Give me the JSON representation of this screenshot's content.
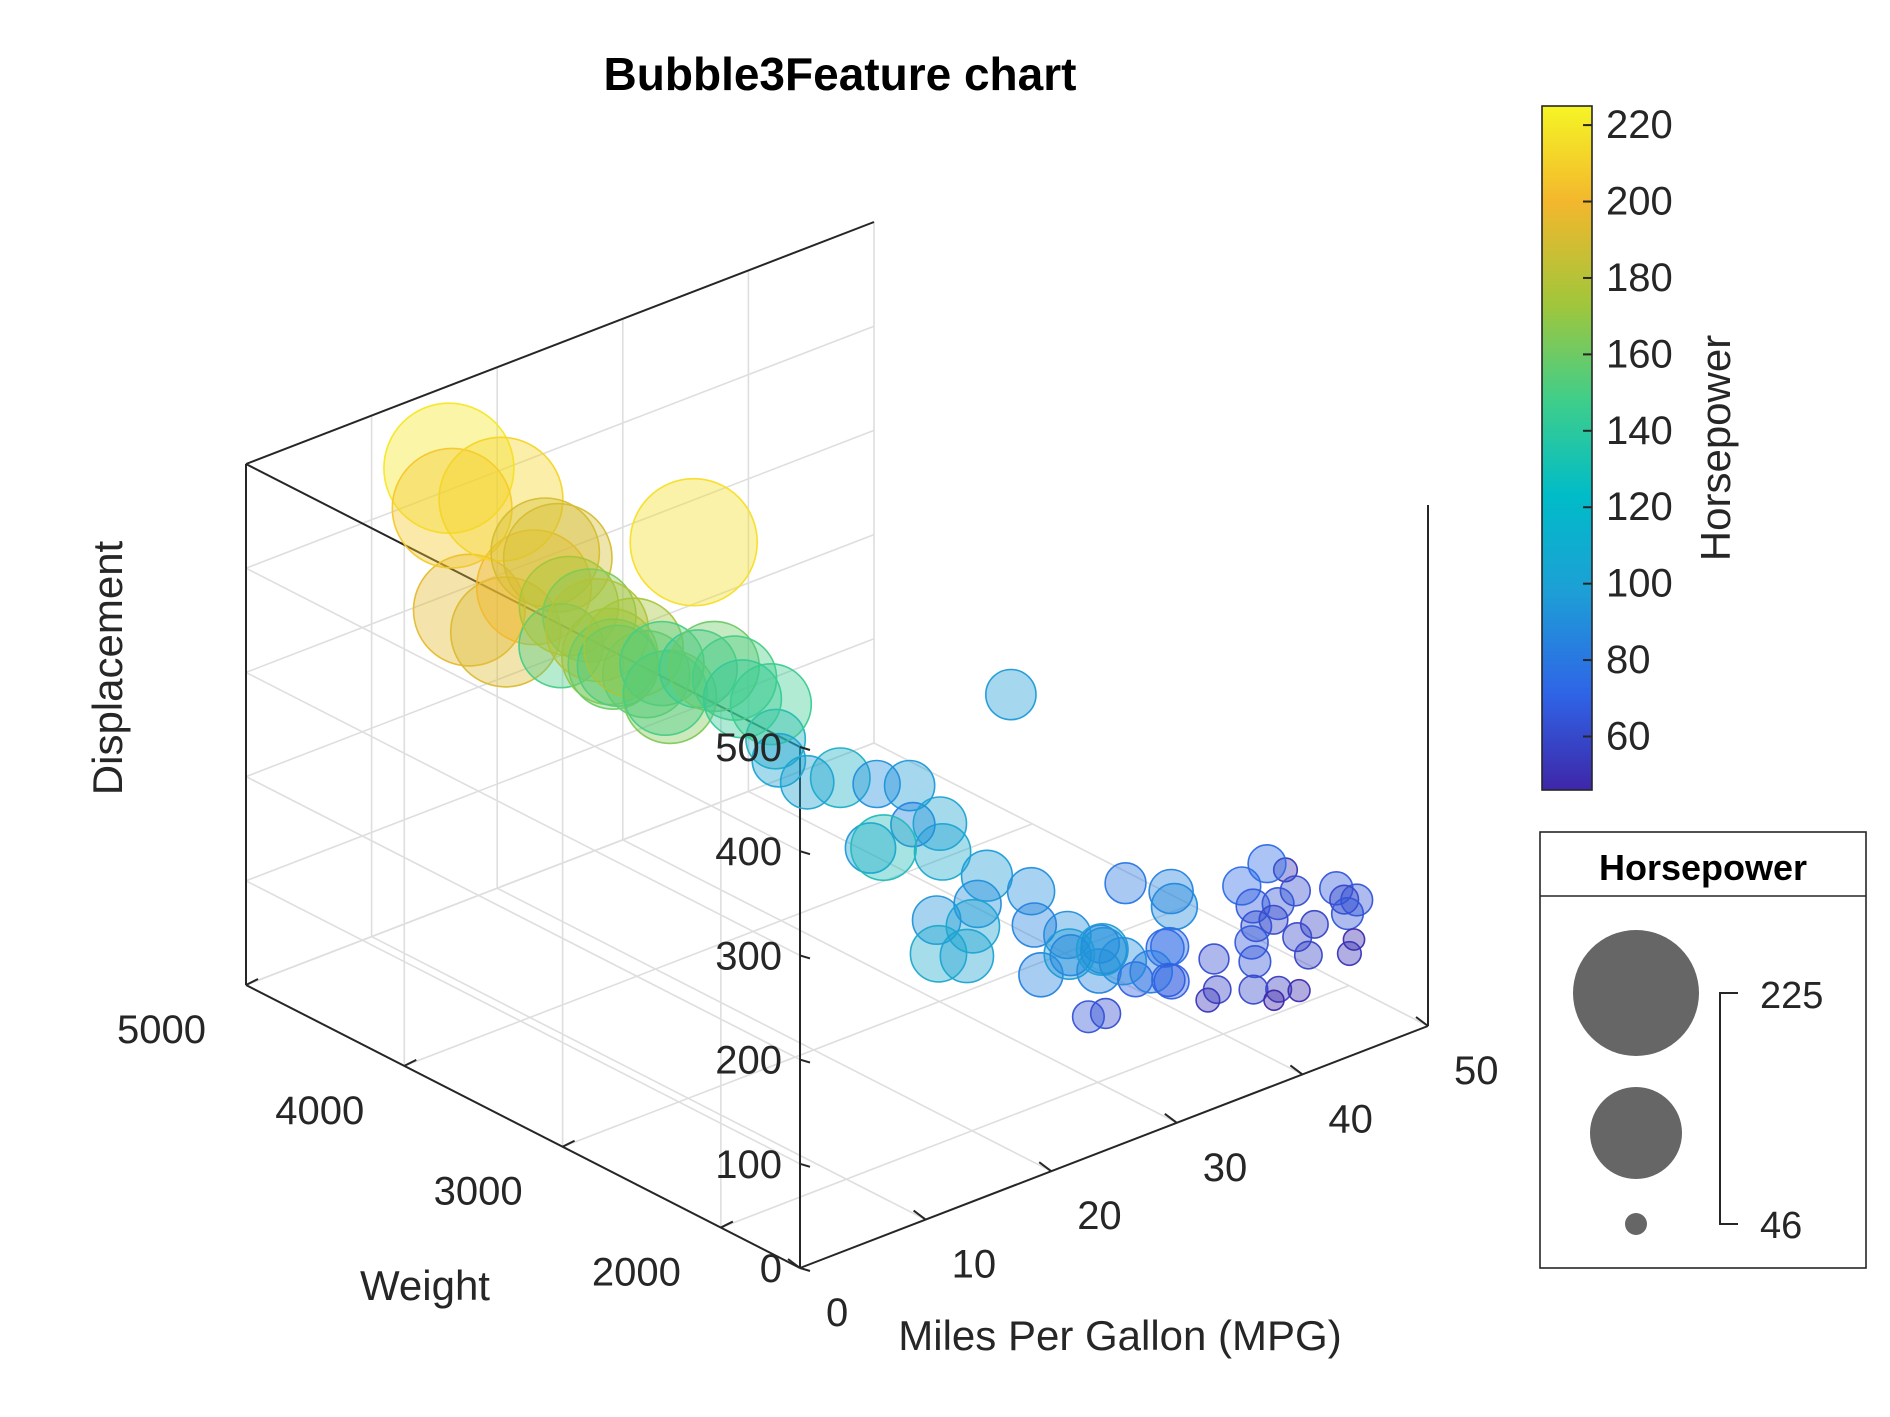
{
  "chart_data": {
    "type": "scatter",
    "subtype": "bubble3d",
    "title": "Bubble3Feature chart",
    "xlabel": "Miles Per Gallon (MPG)",
    "ylabel": "Weight",
    "zlabel": "Displacement",
    "xlim": [
      0,
      50
    ],
    "ylim": [
      1500,
      5000
    ],
    "zlim": [
      0,
      500
    ],
    "xticks": [
      "0",
      "10",
      "20",
      "30",
      "40",
      "50"
    ],
    "yticks": [
      "2000",
      "3000",
      "4000",
      "5000"
    ],
    "zticks": [
      "0",
      "100",
      "200",
      "300",
      "400",
      "500"
    ],
    "grid": true,
    "colormap": [
      "#3e26a8",
      "#2f64e7",
      "#1d9fd6",
      "#1fbfb6",
      "#3fce8a",
      "#a1c63b",
      "#f3b72d",
      "#f5e725"
    ],
    "colorbar": {
      "label": "Horsepower",
      "limits": [
        46,
        225
      ],
      "ticks": [
        "60",
        "80",
        "100",
        "120",
        "140",
        "160",
        "180",
        "200",
        "220"
      ]
    },
    "size_legend": {
      "title": "Horsepower",
      "max_label": "225",
      "min_label": "46"
    },
    "series": [
      {
        "name": "",
        "columns": [
          "mpg",
          "weight",
          "displacement",
          "horsepower"
        ],
        "points": [
          [
            13,
            4750,
            455,
            225
          ],
          [
            14,
            4500,
            440,
            215
          ],
          [
            12,
            4650,
            429,
            208
          ],
          [
            15,
            4300,
            400,
            190
          ],
          [
            16,
            4450,
            350,
            200
          ],
          [
            14,
            4700,
            318,
            195
          ],
          [
            15,
            4550,
            304,
            192
          ],
          [
            18,
            3600,
            450,
            220
          ],
          [
            16,
            4050,
            340,
            180
          ],
          [
            17,
            3900,
            330,
            175
          ],
          [
            16,
            4100,
            350,
            165
          ],
          [
            15,
            4200,
            318,
            150
          ],
          [
            17,
            4000,
            305,
            145
          ],
          [
            18,
            3800,
            318,
            150
          ],
          [
            17,
            3700,
            302,
            150
          ],
          [
            19,
            3650,
            320,
            140
          ],
          [
            16,
            3950,
            315,
            160
          ],
          [
            18,
            3750,
            290,
            165
          ],
          [
            18,
            3900,
            300,
            155
          ],
          [
            17,
            4050,
            310,
            170
          ],
          [
            20,
            3450,
            302,
            140
          ],
          [
            20,
            3500,
            318,
            150
          ],
          [
            19,
            3550,
            330,
            160
          ],
          [
            21,
            3350,
            300,
            145
          ],
          [
            16,
            4300,
            390,
            190
          ],
          [
            15,
            4150,
            360,
            175
          ],
          [
            22,
            3400,
            258,
            110
          ],
          [
            21,
            3300,
            250,
            100
          ],
          [
            22,
            3200,
            232,
            100
          ],
          [
            24,
            3150,
            231,
            110
          ],
          [
            25,
            3000,
            232,
            90
          ],
          [
            27,
            2950,
            225,
            95
          ],
          [
            25,
            2600,
            225,
            100
          ],
          [
            22,
            2800,
            200,
            95
          ],
          [
            26,
            2850,
            200,
            85
          ],
          [
            18,
            2400,
            250,
            120
          ],
          [
            28,
            2600,
            134,
            90
          ],
          [
            30,
            2700,
            144,
            96
          ],
          [
            27,
            2550,
            121,
            100
          ],
          [
            29,
            2900,
            156,
            105
          ],
          [
            26,
            2700,
            120,
            92
          ],
          [
            23,
            2450,
            121,
            105
          ],
          [
            24,
            2350,
            122,
            100
          ],
          [
            28,
            2200,
            97,
            85
          ],
          [
            30,
            2400,
            120,
            85
          ],
          [
            32,
            2350,
            105,
            90
          ],
          [
            31,
            2250,
            98,
            80
          ],
          [
            33,
            2200,
            97,
            88
          ],
          [
            31,
            2500,
            140,
            90
          ],
          [
            34,
            2300,
            91,
            75
          ],
          [
            32,
            2150,
            86,
            85
          ],
          [
            36,
            2050,
            97,
            75
          ],
          [
            33,
            2000,
            85,
            70
          ],
          [
            35,
            1950,
            79,
            67
          ],
          [
            37,
            2100,
            90,
            75
          ],
          [
            38,
            1900,
            89,
            62
          ],
          [
            32,
            2000,
            107,
            90
          ],
          [
            29,
            2100,
            120,
            95
          ],
          [
            31,
            2050,
            119,
            97
          ],
          [
            34,
            1850,
            90,
            70
          ],
          [
            40,
            1800,
            85,
            65
          ],
          [
            41,
            1900,
            91,
            67
          ],
          [
            42,
            1950,
            98,
            63
          ],
          [
            44,
            1850,
            86,
            60
          ],
          [
            38,
            2150,
            120,
            88
          ],
          [
            36,
            2300,
            140,
            80
          ],
          [
            39,
            2250,
            122,
            85
          ],
          [
            43,
            2050,
            105,
            68
          ],
          [
            44,
            2000,
            91,
            60
          ],
          [
            46,
            1900,
            85,
            58
          ],
          [
            47,
            2100,
            97,
            62
          ],
          [
            46,
            2200,
            120,
            75
          ],
          [
            44,
            2200,
            108,
            75
          ],
          [
            45,
            2050,
            98,
            65
          ],
          [
            37,
            1800,
            72,
            58
          ],
          [
            35,
            1700,
            79,
            52
          ],
          [
            30,
            1950,
            70,
            62
          ],
          [
            40,
            1650,
            70,
            55
          ],
          [
            43,
            1700,
            85,
            58
          ],
          [
            41,
            1600,
            68,
            49
          ],
          [
            48,
            1850,
            90,
            65
          ],
          [
            49,
            2000,
            98,
            67
          ],
          [
            49,
            1950,
            91,
            60
          ],
          [
            46,
            1650,
            90,
            48
          ],
          [
            39,
            1600,
            68,
            46
          ],
          [
            28,
            1900,
            80,
            65
          ],
          [
            45,
            1600,
            85,
            52
          ],
          [
            38,
            1650,
            79,
            60
          ],
          [
            50,
            1950,
            86,
            65
          ],
          [
            42,
            3500,
            200,
            95
          ],
          [
            50,
            2400,
            80,
            52
          ],
          [
            33,
            1900,
            100,
            82
          ]
        ]
      }
    ]
  }
}
